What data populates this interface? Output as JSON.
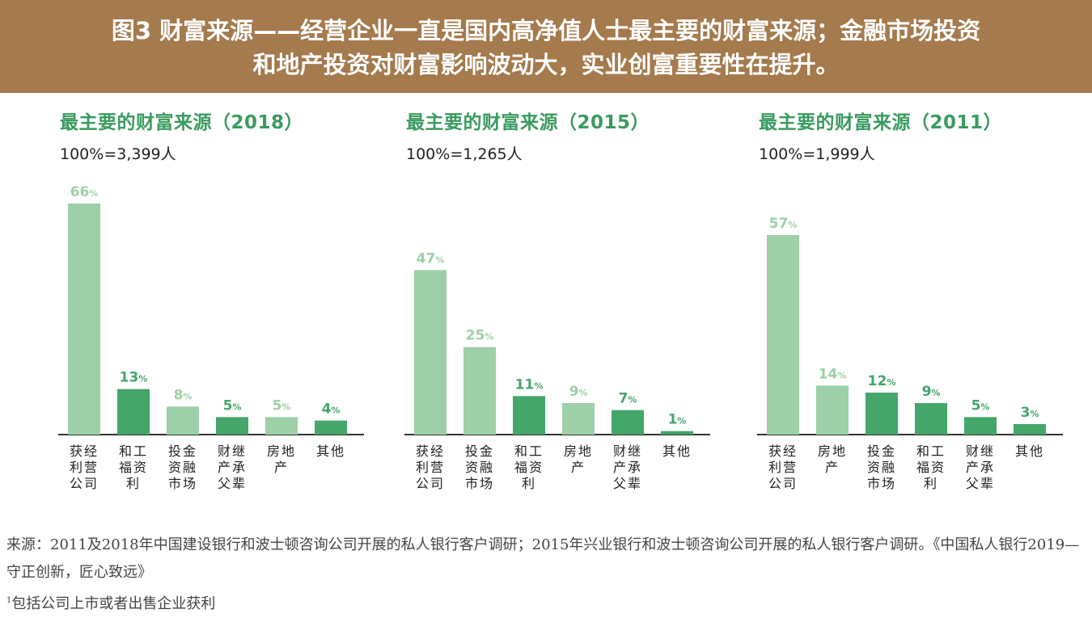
{
  "header": {
    "line1": "图3  财富来源——经营企业一直是国内高净值人士最主要的财富来源；金融市场投资",
    "line2": "和地产投资对财富影响波动大，实业创富重要性在提升。"
  },
  "colors": {
    "light": "#9dd0a8",
    "dark": "#44a66a",
    "title": "#3a9b5f",
    "header_bg": "#a57a4d",
    "axis": "#333333"
  },
  "chart_data": [
    {
      "type": "bar",
      "title": "最主要的财富来源（2018）",
      "subtitle": "100%=3,399人",
      "categories": [
        "获经利营公司",
        "和工福资利",
        "投金资融市场",
        "财继产承父辈",
        "房地产",
        "其他"
      ],
      "category_lines": [
        [
          "获经",
          "利营",
          "公司"
        ],
        [
          "和工",
          "福资",
          "利"
        ],
        [
          "投金",
          "资融",
          "市场"
        ],
        [
          "财继",
          "产承",
          "父辈"
        ],
        [
          "房地",
          "产"
        ],
        [
          "其他"
        ]
      ],
      "values": [
        66,
        13,
        8,
        5,
        5,
        4
      ],
      "value_labels": [
        "66%",
        "13%",
        "8%",
        "5%",
        "5%",
        "4%"
      ],
      "bar_colors": [
        "#9dd0a8",
        "#44a66a",
        "#9dd0a8",
        "#44a66a",
        "#9dd0a8",
        "#44a66a"
      ],
      "ylim": [
        0,
        66
      ]
    },
    {
      "type": "bar",
      "title": "最主要的财富来源（2015）",
      "subtitle": "100%=1,265人",
      "categories": [
        "获经利营公司",
        "投金资融市场",
        "和工福资利",
        "房地产",
        "财继产承父辈",
        "其他"
      ],
      "category_lines": [
        [
          "获经",
          "利营",
          "公司"
        ],
        [
          "投金",
          "资融",
          "市场"
        ],
        [
          "和工",
          "福资",
          "利"
        ],
        [
          "房地",
          "产"
        ],
        [
          "财继",
          "产承",
          "父辈"
        ],
        [
          "其他"
        ]
      ],
      "values": [
        47,
        25,
        11,
        9,
        7,
        1
      ],
      "value_labels": [
        "47%",
        "25%",
        "11%",
        "9%",
        "7%",
        "1%"
      ],
      "bar_colors": [
        "#9dd0a8",
        "#9dd0a8",
        "#44a66a",
        "#9dd0a8",
        "#44a66a",
        "#44a66a"
      ],
      "ylim": [
        0,
        66
      ]
    },
    {
      "type": "bar",
      "title": "最主要的财富来源（2011）",
      "subtitle": "100%=1,999人",
      "categories": [
        "获经利营公司",
        "房地产",
        "投金资融市场",
        "和工福资利",
        "财继产承父辈",
        "其他"
      ],
      "category_lines": [
        [
          "获经",
          "利营",
          "公司"
        ],
        [
          "房地",
          "产"
        ],
        [
          "投金",
          "资融",
          "市场"
        ],
        [
          "和工",
          "福资",
          "利"
        ],
        [
          "财继",
          "产承",
          "父辈"
        ],
        [
          "其他"
        ]
      ],
      "values": [
        57,
        14,
        12,
        9,
        5,
        3
      ],
      "value_labels": [
        "57%",
        "14%",
        "12%",
        "9%",
        "5%",
        "3%"
      ],
      "bar_colors": [
        "#9dd0a8",
        "#9dd0a8",
        "#44a66a",
        "#44a66a",
        "#44a66a",
        "#44a66a"
      ],
      "ylim": [
        0,
        66
      ]
    }
  ],
  "source": "来源：2011及2018年中国建设银行和波士顿咨询公司开展的私人银行客户调研；2015年兴业银行和波士顿咨询公司开展的私人银行客户调研。《中国私人银行2019—守正创新，匠心致远》",
  "footnote_mark": "1",
  "footnote": "包括公司上市或者出售企业获利"
}
